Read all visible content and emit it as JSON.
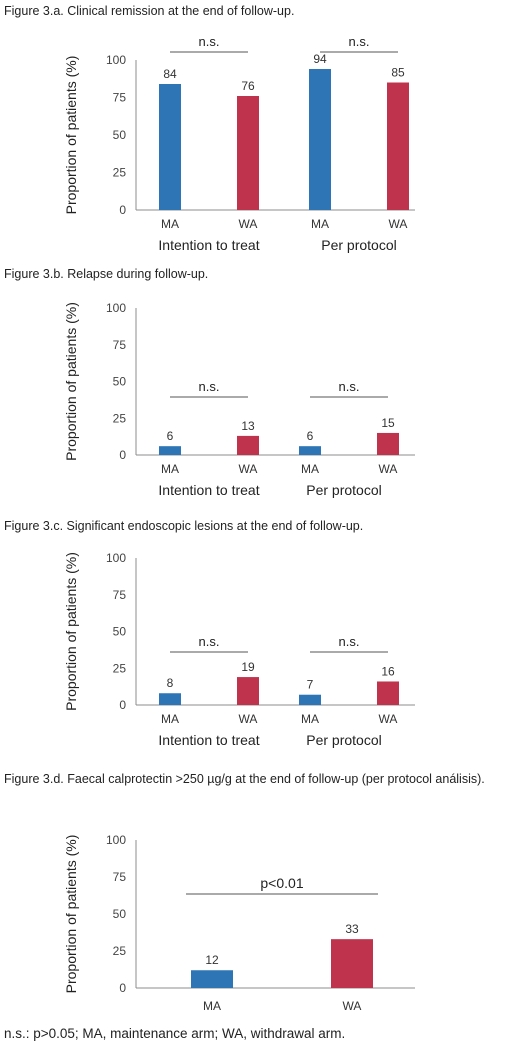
{
  "colors": {
    "ma": "#2e75b6",
    "wa": "#c0334d",
    "axis": "#8c8c8c",
    "text": "#333333"
  },
  "charts": {
    "a": {
      "caption": "Figure 3.a. Clinical remission at the end of follow-up."
    },
    "b": {
      "caption": "Figure 3.b. Relapse during follow-up."
    },
    "c": {
      "caption": "Figure 3.c. Significant endoscopic lesions at the end of follow-up."
    },
    "d": {
      "caption": "Figure 3.d. Faecal calprotectin >250 µg/g at the end of follow-up (per protocol análisis)."
    }
  },
  "footnote": "n.s.: p>0.05; MA, maintenance arm; WA, withdrawal arm.",
  "chart_data": [
    {
      "type": "bar",
      "title": "Figure 3.a. Clinical remission at the end of follow-up.",
      "ylabel": "Proportion of patients (%)",
      "ylim": [
        0,
        100
      ],
      "yticks": [
        0,
        25,
        50,
        75,
        100
      ],
      "groups": [
        "Intention to treat",
        "Per protocol"
      ],
      "categories": [
        "MA",
        "WA",
        "MA",
        "WA"
      ],
      "values": [
        84,
        76,
        94,
        85
      ],
      "significance": [
        "n.s.",
        "n.s."
      ]
    },
    {
      "type": "bar",
      "title": "Figure 3.b. Relapse during follow-up.",
      "ylabel": "Proportion of patients (%)",
      "ylim": [
        0,
        100
      ],
      "yticks": [
        0,
        25,
        50,
        75,
        100
      ],
      "groups": [
        "Intention to treat",
        "Per protocol"
      ],
      "categories": [
        "MA",
        "WA",
        "MA",
        "WA"
      ],
      "values": [
        6,
        13,
        6,
        15
      ],
      "significance": [
        "n.s.",
        "n.s."
      ]
    },
    {
      "type": "bar",
      "title": "Figure 3.c. Significant endoscopic lesions at the end of follow-up.",
      "ylabel": "Proportion of patients (%)",
      "ylim": [
        0,
        100
      ],
      "yticks": [
        0,
        25,
        50,
        75,
        100
      ],
      "groups": [
        "Intention to treat",
        "Per protocol"
      ],
      "categories": [
        "MA",
        "WA",
        "MA",
        "WA"
      ],
      "values": [
        8,
        19,
        7,
        16
      ],
      "significance": [
        "n.s.",
        "n.s."
      ]
    },
    {
      "type": "bar",
      "title": "Figure 3.d. Faecal calprotectin >250 µg/g at the end of follow-up (per protocol análisis).",
      "ylabel": "Proportion of patients (%)",
      "ylim": [
        0,
        100
      ],
      "yticks": [
        0,
        25,
        50,
        75,
        100
      ],
      "groups": [],
      "categories": [
        "MA",
        "WA"
      ],
      "values": [
        12,
        33
      ],
      "significance": [
        "p<0.01"
      ]
    }
  ]
}
